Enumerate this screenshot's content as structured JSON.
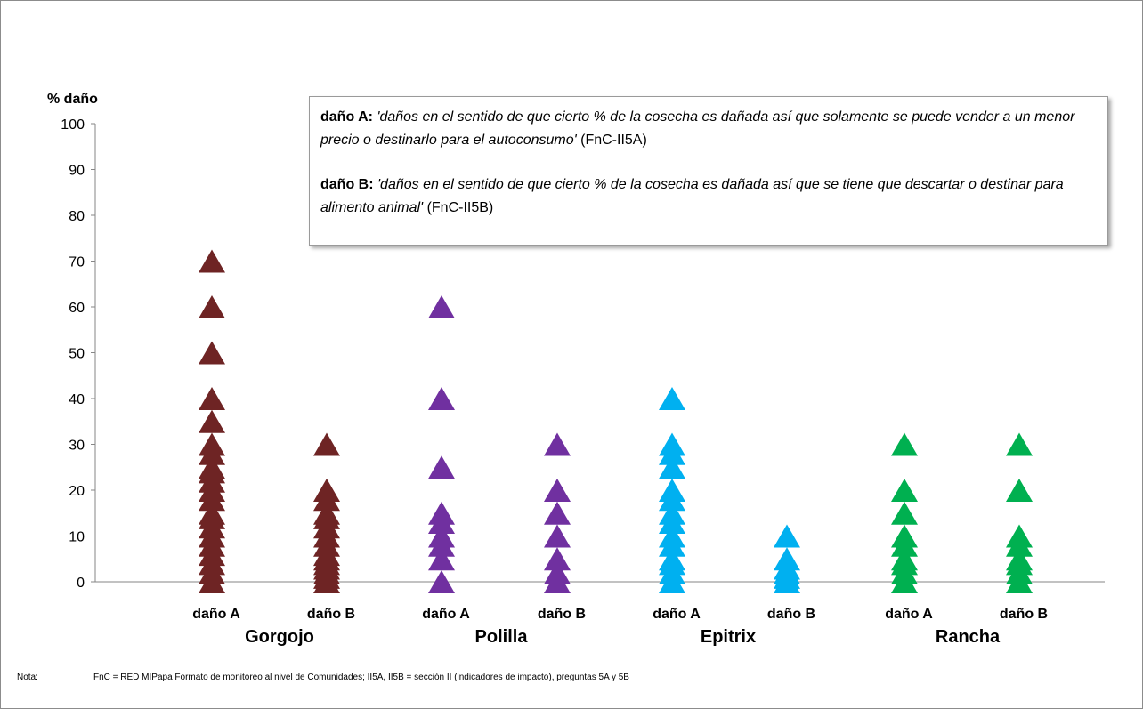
{
  "chart_data": {
    "type": "scatter",
    "marker": "triangle",
    "ylabel": "% daño",
    "ylim": [
      0,
      100
    ],
    "yticks": [
      0,
      10,
      20,
      30,
      40,
      50,
      60,
      70,
      80,
      90,
      100
    ],
    "groups": [
      {
        "name": "Gorgojo",
        "color": "#6e2424",
        "series": [
          {
            "label": "daño A",
            "values": [
              0,
              2,
              4,
              6,
              8,
              10,
              12,
              14,
              15,
              18,
              20,
              22,
              24,
              25,
              28,
              30,
              35,
              40,
              50,
              60,
              70
            ]
          },
          {
            "label": "daño B",
            "values": [
              0,
              1,
              2,
              3,
              4,
              5,
              6,
              8,
              10,
              12,
              14,
              15,
              18,
              20,
              30
            ]
          }
        ]
      },
      {
        "name": "Polilla",
        "color": "#7030a0",
        "series": [
          {
            "label": "daño A",
            "values": [
              0,
              5,
              8,
              10,
              13,
              15,
              25,
              40,
              60
            ]
          },
          {
            "label": "daño B",
            "values": [
              0,
              2,
              5,
              10,
              15,
              20,
              30
            ]
          }
        ]
      },
      {
        "name": "Epitrix",
        "color": "#00b0f0",
        "series": [
          {
            "label": "daño A",
            "values": [
              0,
              2,
              4,
              5,
              8,
              10,
              13,
              15,
              18,
              20,
              25,
              28,
              30,
              40
            ]
          },
          {
            "label": "daño B",
            "values": [
              0,
              1,
              2,
              3,
              5,
              10
            ]
          }
        ]
      },
      {
        "name": "Rancha",
        "color": "#00b050",
        "series": [
          {
            "label": "daño A",
            "values": [
              0,
              2,
              4,
              5,
              8,
              10,
              15,
              20,
              30
            ]
          },
          {
            "label": "daño B",
            "values": [
              0,
              2,
              4,
              5,
              8,
              10,
              20,
              30
            ]
          }
        ]
      }
    ]
  },
  "legend": {
    "a_label": "daño A:",
    "a_text": "'daños en el sentido de que cierto % de la cosecha es dañada así que solamente se puede vender a un menor precio o destinarlo para el autoconsumo'",
    "a_ref": "(FnC-II5A)",
    "b_label": "daño B:",
    "b_text": "'daños en el sentido de que cierto % de la cosecha es dañada así que se tiene que descartar o destinar para alimento animal'",
    "b_ref": "(FnC-II5B)"
  },
  "note": {
    "label": "Nota:",
    "text": "FnC = RED MIPapa Formato de monitoreo al nivel de Comunidades; II5A, II5B = sección II (indicadores de impacto), preguntas 5A y 5B"
  }
}
